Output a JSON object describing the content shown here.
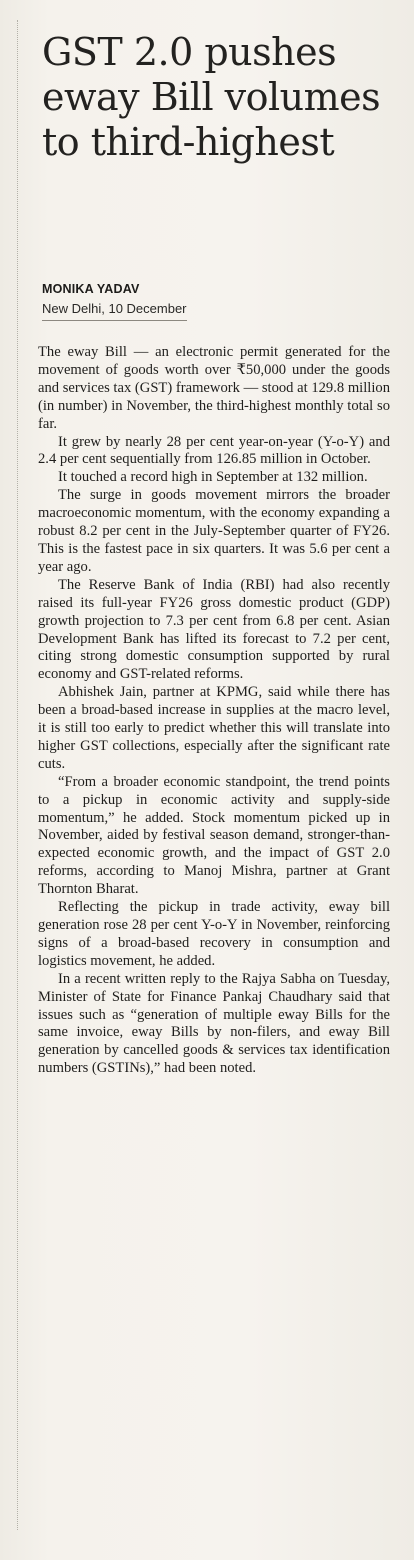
{
  "article": {
    "headline": "GST 2.0 pushes eway Bill volumes to third-highest",
    "byline": "MONIKA YADAV",
    "dateline": "New Delhi, 10 December",
    "paragraphs": [
      "The eway Bill — an electronic permit generated for the movement of goods worth over ₹50,000 under the goods and services tax (GST) framework — stood at 129.8 million (in number) in November, the third-highest monthly total so far.",
      "It grew by nearly 28 per cent year-on-year (Y-o-Y) and 2.4 per cent sequentially from 126.85 million in October.",
      "It touched a record high in September at 132 million.",
      "The surge in goods movement mirrors the broader macroeconomic momentum, with the economy expanding a robust 8.2 per cent in the July-September quarter of FY26. This is the fastest pace in six quarters. It was 5.6 per cent a year ago.",
      "The Reserve Bank of India (RBI) had also recently raised its full-year FY26 gross domestic product (GDP) growth projection to 7.3 per cent from 6.8 per cent. Asian Development Bank has lifted its forecast to 7.2 per cent, citing strong domestic consumption supported by rural economy and GST-related reforms.",
      "Abhishek Jain, partner at KPMG, said while there has been a broad-based increase in supplies at the macro level, it is still too early to predict whether this will translate into higher GST collections, especially after the significant rate cuts.",
      "“From a broader economic standpoint, the trend points to a pickup in economic activity and supply-side momentum,” he added. Stock momentum picked up in November, aided by festival season demand, stronger-than-expected economic growth, and the impact of GST 2.0 reforms, according to Manoj Mishra, partner at Grant Thornton Bharat.",
      "Reflecting the pickup in trade activity, eway bill generation rose 28 per cent Y-o-Y in November, reinforcing signs of a broad-based recovery in consumption and logistics movement, he added.",
      "In a recent written reply to the Rajya Sabha on Tuesday, Minister of State for Finance Pankaj Chaudhary said that issues such as “generation of multiple eway Bills for the same invoice, eway Bills by non-filers, and eway Bill generation by cancelled goods & services tax identification numbers (GSTINs),” had been noted."
    ]
  }
}
